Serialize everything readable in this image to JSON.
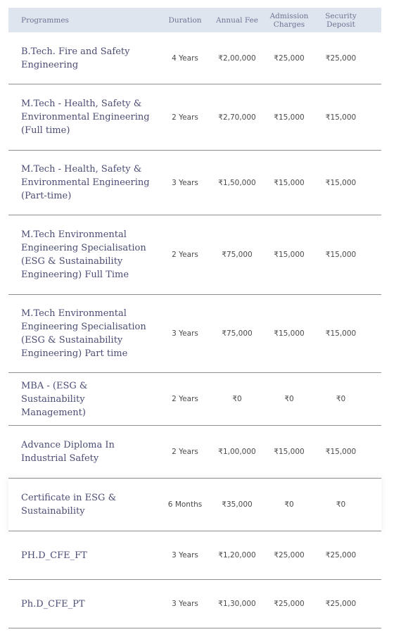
{
  "table": {
    "headers": {
      "programmes": "Programmes",
      "duration": "Duration",
      "annual_fee": "Annual Fee",
      "admission_charges": "Admission\nCharges",
      "security_deposit": "Security\nDeposit"
    },
    "rows": [
      {
        "programme": "B.Tech. Fire and Safety Engineering",
        "duration": "4 Years",
        "annual_fee": "₹2,00,000",
        "admission_charges": "₹25,000",
        "security_deposit": "₹25,000"
      },
      {
        "programme": "M.Tech - Health, Safety & Environmental Engineering (Full time)",
        "duration": "2 Years",
        "annual_fee": "₹2,70,000",
        "admission_charges": "₹15,000",
        "security_deposit": "₹15,000"
      },
      {
        "programme": "M.Tech - Health, Safety & Environmental Engineering (Part-time)",
        "duration": "3 Years",
        "annual_fee": "₹1,50,000",
        "admission_charges": "₹15,000",
        "security_deposit": "₹15,000"
      },
      {
        "programme": "M.Tech Environmental Engineering Specialisation (ESG & Sustainability Engineering) Full Time",
        "duration": "2 Years",
        "annual_fee": "₹75,000",
        "admission_charges": "₹15,000",
        "security_deposit": "₹15,000"
      },
      {
        "programme": "M.Tech Environmental Engineering Specialisation (ESG & Sustainability Engineering) Part time",
        "duration": "3 Years",
        "annual_fee": "₹75,000",
        "admission_charges": "₹15,000",
        "security_deposit": "₹15,000"
      },
      {
        "programme": "MBA - (ESG & Sustainability Management)",
        "duration": "2 Years",
        "annual_fee": "₹0",
        "admission_charges": "₹0",
        "security_deposit": "₹0"
      },
      {
        "programme": "Advance Diploma In Industrial Safety",
        "duration": "2 Years",
        "annual_fee": "₹1,00,000",
        "admission_charges": "₹15,000",
        "security_deposit": "₹15,000"
      },
      {
        "programme": "Certificate in ESG & Sustainability",
        "duration": "6 Months",
        "annual_fee": "₹35,000",
        "admission_charges": "₹0",
        "security_deposit": "₹0"
      },
      {
        "programme": "PH.D_CFE_FT",
        "duration": "3 Years",
        "annual_fee": "₹1,20,000",
        "admission_charges": "₹25,000",
        "security_deposit": "₹25,000"
      },
      {
        "programme": "Ph.D_CFE_PT",
        "duration": "3 Years",
        "annual_fee": "₹1,30,000",
        "admission_charges": "₹25,000",
        "security_deposit": "₹25,000"
      }
    ]
  }
}
